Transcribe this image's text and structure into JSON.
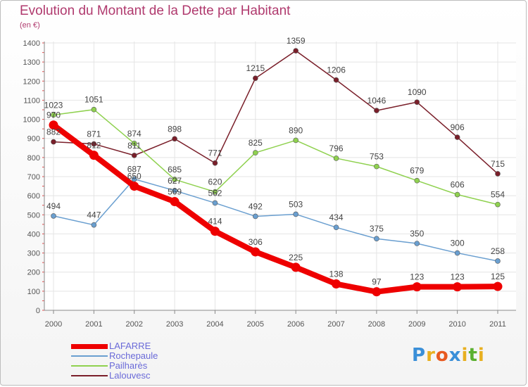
{
  "chart_data": {
    "type": "line",
    "title": "Evolution du Montant de la Dette par Habitant",
    "subtitle": "(en €)",
    "categories": [
      "2000",
      "2001",
      "2002",
      "2003",
      "2004",
      "2005",
      "2006",
      "2007",
      "2008",
      "2009",
      "2010",
      "2011"
    ],
    "ylim": [
      0,
      1400
    ],
    "yticks": [
      0,
      100,
      200,
      300,
      400,
      500,
      600,
      700,
      800,
      900,
      1000,
      1100,
      1200,
      1300,
      1400
    ],
    "grid": true,
    "legend_position": "bottom-left",
    "series": [
      {
        "name": "Lalouvesc",
        "color": "#7a1f2a",
        "values": [
          882,
          871,
          811,
          898,
          771,
          1215,
          1359,
          1206,
          1046,
          1090,
          906,
          715
        ]
      },
      {
        "name": "Pailharès",
        "color": "#8fd14f",
        "values": [
          1023,
          1051,
          874,
          685,
          620,
          825,
          890,
          796,
          753,
          679,
          606,
          554
        ]
      },
      {
        "name": "Rochepaule",
        "color": "#6a9fd0",
        "values": [
          494,
          447,
          687,
          627,
          562,
          492,
          503,
          434,
          375,
          350,
          300,
          258
        ]
      },
      {
        "name": "LAFARRE",
        "color": "#ee0000",
        "values": [
          970,
          812,
          650,
          569,
          414,
          306,
          225,
          138,
          97,
          123,
          123,
          125
        ]
      }
    ]
  },
  "legend": {
    "items": [
      {
        "label": "LAFARRE",
        "color": "#ee0000",
        "thickness": 7
      },
      {
        "label": "Rochepaule",
        "color": "#6a9fd0",
        "thickness": 2
      },
      {
        "label": "Pailharès",
        "color": "#8fd14f",
        "thickness": 2
      },
      {
        "label": "Lalouvesc",
        "color": "#7a1f2a",
        "thickness": 2
      }
    ]
  },
  "logo": {
    "letters": [
      "P",
      "r",
      "o",
      "x",
      "i",
      "t",
      "i"
    ],
    "colors": [
      "#3a8fd8",
      "#e8b020",
      "#e85a20",
      "#3a8fd8",
      "#e8b020",
      "#5ab030",
      "#e8b020"
    ]
  }
}
